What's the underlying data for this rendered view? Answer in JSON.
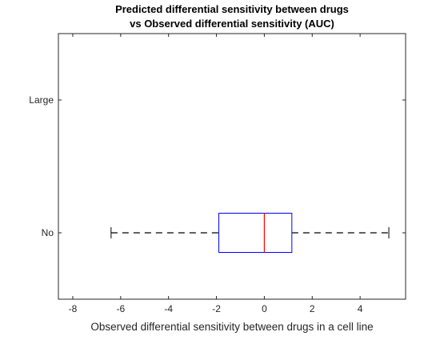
{
  "chart_data": {
    "type": "box",
    "orientation": "horizontal",
    "title": [
      "Predicted differential sensitivity between drugs",
      "vs Observed differential sensitivity (AUC)"
    ],
    "xlabel": "Observed differential sensitivity between drugs in a cell line",
    "ylabel": "",
    "xlim": [
      -8.6,
      5.9
    ],
    "xticks": [
      -8,
      -6,
      -4,
      -2,
      0,
      2,
      4
    ],
    "categories": [
      "Large",
      "No"
    ],
    "boxes": [
      {
        "category": "Large",
        "empty": true
      },
      {
        "category": "No",
        "whisker_low": -6.4,
        "q1": -1.9,
        "median": 0.0,
        "q3": 1.15,
        "whisker_high": 5.2
      }
    ],
    "grid": false,
    "colors": {
      "box": "#0000ff",
      "median": "#ff0000",
      "whisker": "#000000",
      "axes": "#262626"
    }
  }
}
